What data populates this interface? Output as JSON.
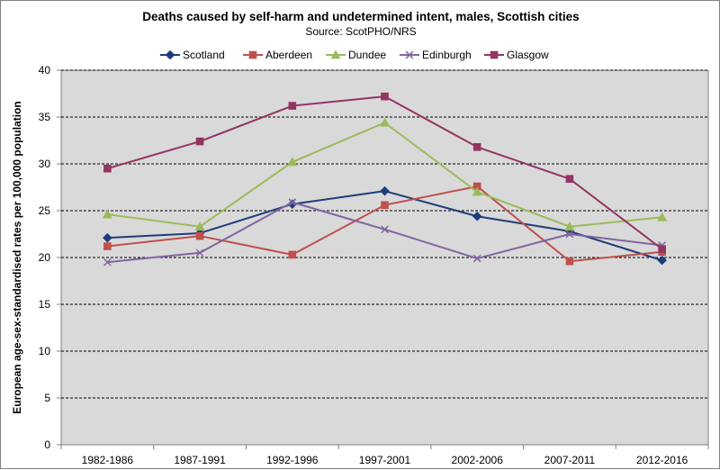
{
  "chart_data": {
    "type": "line",
    "title": "Deaths caused by self-harm and undetermined intent, males, Scottish cities",
    "subtitle": "Source: ScotPHO/NRS",
    "xlabel": "",
    "ylabel": "European age-sex-standardised rates per 100,000 population",
    "categories": [
      "1982-1986",
      "1987-1991",
      "1992-1996",
      "1997-2001",
      "2002-2006",
      "2007-2011",
      "2012-2016"
    ],
    "ylim": [
      0,
      40
    ],
    "yticks": [
      "0",
      "5",
      "10",
      "15",
      "20",
      "25",
      "30",
      "35",
      "40"
    ],
    "grid": "horizontal-dashed",
    "legend_position": "top",
    "series": [
      {
        "name": "Scotland",
        "color": "#1f3d7a",
        "marker": "diamond",
        "values": [
          22.1,
          22.6,
          25.7,
          27.1,
          24.4,
          22.8,
          19.7
        ]
      },
      {
        "name": "Aberdeen",
        "color": "#c0504d",
        "marker": "square",
        "values": [
          21.2,
          22.3,
          20.3,
          25.6,
          27.6,
          19.6,
          20.6
        ]
      },
      {
        "name": "Dundee",
        "color": "#9bbb59",
        "marker": "triangle",
        "values": [
          24.6,
          23.3,
          30.2,
          34.4,
          27.0,
          23.3,
          24.3
        ]
      },
      {
        "name": "Edinburgh",
        "color": "#8064a2",
        "marker": "x",
        "values": [
          19.5,
          20.5,
          25.9,
          23.0,
          19.9,
          22.5,
          21.3
        ]
      },
      {
        "name": "Glasgow",
        "color": "#943462",
        "marker": "square",
        "values": [
          29.5,
          32.4,
          36.2,
          37.2,
          31.8,
          28.4,
          20.9
        ]
      }
    ]
  }
}
